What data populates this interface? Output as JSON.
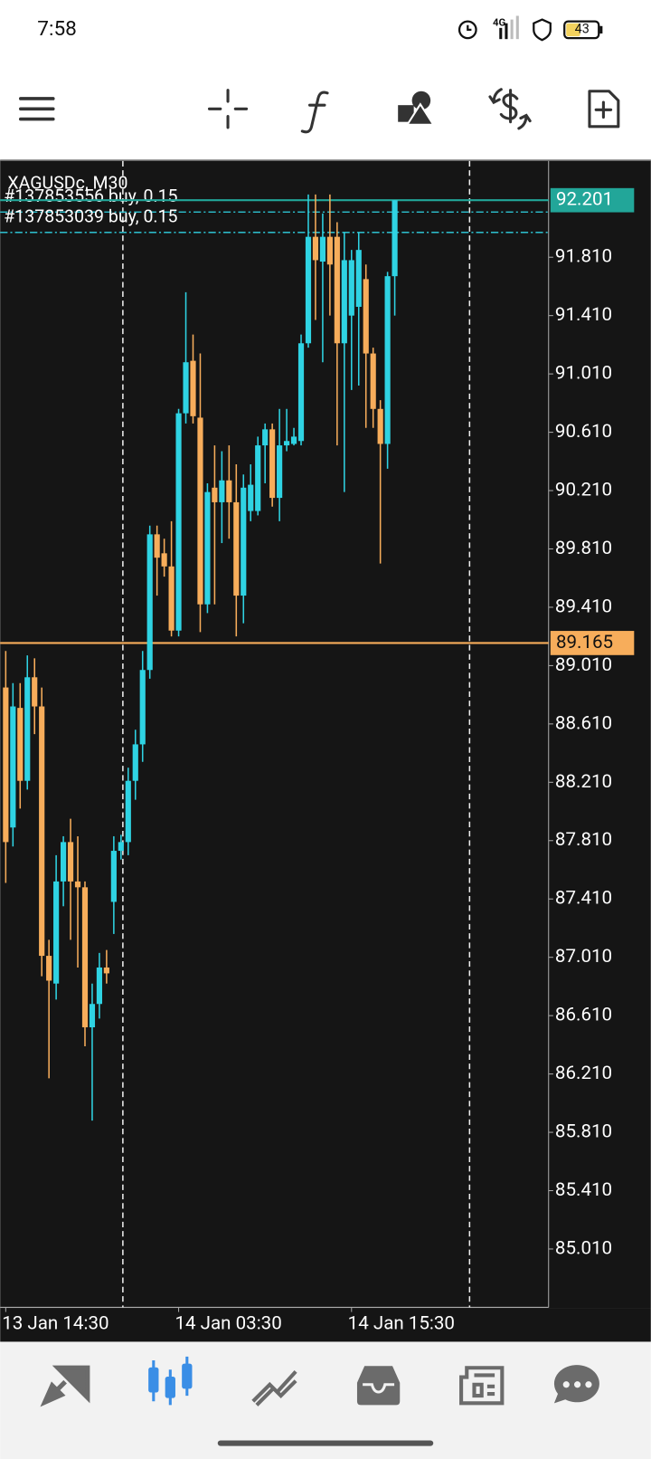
{
  "status_bar": {
    "time": "7:58",
    "network": "4G",
    "battery": "43"
  },
  "chart_data": {
    "type": "candlestick",
    "title": "XAGUSDc, M30",
    "orders": [
      {
        "label": "#137853556 buy, 0.15",
        "price": 92.12
      },
      {
        "label": "#137853039 buy, 0.15",
        "price": 91.98
      }
    ],
    "categories": [
      "13 Jan 14:30",
      null,
      null,
      null,
      null,
      null,
      null,
      null,
      null,
      null,
      null,
      null,
      null,
      null,
      null,
      null,
      null,
      null,
      null,
      null,
      null,
      null,
      null,
      null,
      "14 Jan 03:30",
      null,
      null,
      null,
      null,
      null,
      null,
      null,
      null,
      null,
      null,
      null,
      null,
      null,
      null,
      null,
      null,
      null,
      null,
      null,
      null,
      null,
      null,
      null,
      "14 Jan 15:30",
      null,
      null,
      null,
      null,
      null,
      null
    ],
    "open": [
      88.86,
      87.9,
      88.72,
      88.22,
      88.93,
      88.73,
      87.02,
      86.83,
      87.53,
      87.8,
      87.53,
      87.49,
      86.53,
      86.69,
      86.94,
      87.39,
      87.74,
      87.8,
      88.22,
      88.47,
      88.98,
      89.91,
      89.78,
      89.69,
      89.25,
      90.74,
      91.1,
      90.71,
      89.43,
      90.23,
      90.13,
      90.28,
      90.13,
      89.49,
      90.07,
      90.07,
      90.52,
      90.63,
      90.16,
      90.52,
      90.53,
      90.55,
      91.22,
      91.95,
      91.78,
      91.95,
      91.95,
      91.22,
      91.41,
      91.47,
      91.66,
      91.15,
      90.77,
      90.53,
      91.68
    ],
    "high": [
      89.11,
      88.89,
      88.89,
      89.08,
      89.06,
      88.86,
      87.13,
      87.71,
      87.84,
      87.96,
      87.84,
      87.53,
      86.83,
      87.04,
      87.06,
      87.84,
      87.85,
      88.31,
      88.57,
      89.11,
      89.97,
      89.97,
      89.88,
      90.0,
      90.77,
      91.57,
      91.28,
      91.15,
      90.26,
      90.52,
      90.48,
      90.52,
      90.39,
      90.32,
      90.39,
      90.58,
      90.67,
      90.67,
      90.77,
      90.77,
      90.64,
      91.28,
      92.24,
      92.24,
      92.11,
      92.24,
      92.05,
      91.98,
      91.86,
      91.98,
      91.76,
      91.19,
      90.83,
      91.71,
      92.201
    ],
    "low": [
      87.52,
      87.77,
      88.03,
      88.16,
      88.54,
      86.88,
      86.18,
      86.72,
      87.36,
      87.13,
      86.94,
      86.4,
      85.89,
      86.59,
      86.83,
      87.17,
      87.68,
      87.71,
      88.09,
      88.35,
      88.92,
      89.49,
      89.62,
      89.21,
      89.21,
      90.67,
      90.67,
      89.24,
      89.37,
      89.43,
      89.85,
      89.88,
      89.21,
      89.3,
      90.0,
      90.04,
      90.26,
      90.1,
      90.0,
      90.48,
      90.52,
      90.52,
      91.19,
      91.38,
      91.09,
      91.41,
      90.52,
      90.2,
      90.9,
      90.93,
      90.64,
      90.64,
      89.71,
      90.36,
      91.41
    ],
    "close": [
      87.8,
      88.73,
      88.22,
      88.93,
      88.73,
      87.02,
      86.85,
      87.53,
      87.8,
      87.53,
      87.49,
      86.53,
      86.69,
      86.94,
      86.9,
      87.74,
      87.8,
      88.22,
      88.47,
      88.98,
      89.91,
      89.75,
      89.69,
      89.25,
      90.74,
      91.09,
      90.72,
      89.43,
      90.2,
      90.13,
      90.28,
      90.13,
      89.49,
      90.23,
      90.25,
      90.52,
      90.63,
      90.16,
      90.52,
      90.55,
      90.58,
      91.22,
      91.95,
      91.79,
      91.95,
      91.76,
      91.22,
      91.79,
      91.79,
      91.86,
      91.15,
      90.77,
      90.53,
      91.68,
      92.201
    ],
    "up_color": "#2fd3e3",
    "down_color": "#f7ad5b",
    "price_lines": [
      {
        "value": 92.201,
        "color": "#22a699",
        "text_color": "#ffffff"
      },
      {
        "value": 89.165,
        "color": "#f7ad5b",
        "text_color": "#111111"
      }
    ],
    "ylim": [
      84.61,
      92.47
    ],
    "yticks": [
      {
        "value": 91.81,
        "label": "91.810"
      },
      {
        "value": 91.41,
        "label": "91.410"
      },
      {
        "value": 91.01,
        "label": "91.010"
      },
      {
        "value": 90.61,
        "label": "90.610"
      },
      {
        "value": 90.21,
        "label": "90.210"
      },
      {
        "value": 89.81,
        "label": "89.810"
      },
      {
        "value": 89.41,
        "label": "89.410"
      },
      {
        "value": 89.01,
        "label": "89.010"
      },
      {
        "value": 88.61,
        "label": "88.610"
      },
      {
        "value": 88.21,
        "label": "88.210"
      },
      {
        "value": 87.81,
        "label": "87.810"
      },
      {
        "value": 87.41,
        "label": "87.410"
      },
      {
        "value": 87.01,
        "label": "87.010"
      },
      {
        "value": 86.61,
        "label": "86.610"
      },
      {
        "value": 86.21,
        "label": "86.210"
      },
      {
        "value": 85.81,
        "label": "85.810"
      },
      {
        "value": 85.41,
        "label": "85.410"
      },
      {
        "value": 85.01,
        "label": "85.010"
      }
    ]
  }
}
